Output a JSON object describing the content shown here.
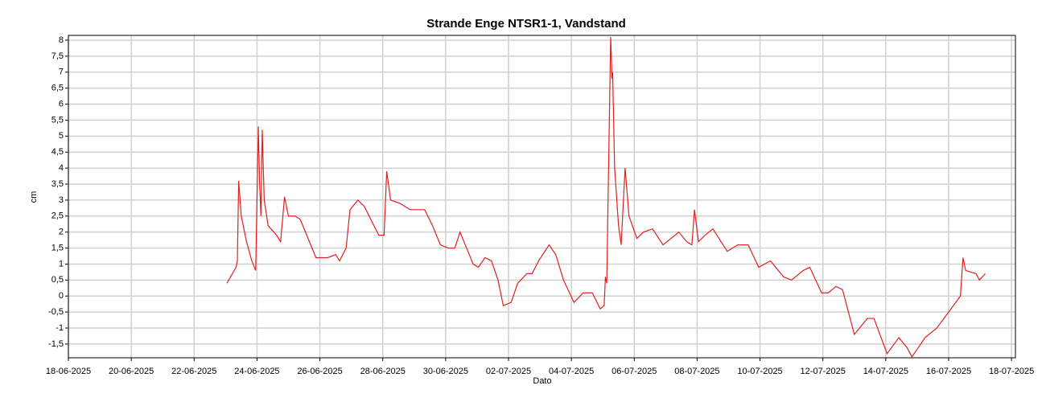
{
  "chart_data": {
    "type": "line",
    "title": "Strande Enge NTSR1-1, Vandstand",
    "x_label": "Dato",
    "y_label": "cm",
    "xlim": [
      "2025-06-18T00:00",
      "2025-07-18T03:00"
    ],
    "ylim": [
      -1.93,
      8.15
    ],
    "xticks": [
      {
        "value": "2025-06-18T00:00",
        "label": "18-06-2025"
      },
      {
        "value": "2025-06-20T00:00",
        "label": "20-06-2025"
      },
      {
        "value": "2025-06-22T00:00",
        "label": "22-06-2025"
      },
      {
        "value": "2025-06-24T00:00",
        "label": "24-06-2025"
      },
      {
        "value": "2025-06-26T00:00",
        "label": "26-06-2025"
      },
      {
        "value": "2025-06-28T00:00",
        "label": "28-06-2025"
      },
      {
        "value": "2025-06-30T00:00",
        "label": "30-06-2025"
      },
      {
        "value": "2025-07-02T00:00",
        "label": "02-07-2025"
      },
      {
        "value": "2025-07-04T00:00",
        "label": "04-07-2025"
      },
      {
        "value": "2025-07-06T00:00",
        "label": "06-07-2025"
      },
      {
        "value": "2025-07-08T00:00",
        "label": "08-07-2025"
      },
      {
        "value": "2025-07-10T00:00",
        "label": "10-07-2025"
      },
      {
        "value": "2025-07-12T00:00",
        "label": "12-07-2025"
      },
      {
        "value": "2025-07-14T00:00",
        "label": "14-07-2025"
      },
      {
        "value": "2025-07-16T00:00",
        "label": "16-07-2025"
      },
      {
        "value": "2025-07-18T00:00",
        "label": "18-07-2025"
      }
    ],
    "yticks": [
      {
        "value": -1.5,
        "label": "-1,5"
      },
      -1,
      {
        "value": -0.5,
        "label": "-0,5"
      },
      0,
      {
        "value": 0.5,
        "label": "0,5"
      },
      1,
      {
        "value": 1.5,
        "label": "1,5"
      },
      2,
      {
        "value": 2.5,
        "label": "2,5"
      },
      3,
      {
        "value": 3.5,
        "label": "3,5"
      },
      4,
      {
        "value": 4.5,
        "label": "4,5"
      },
      5,
      {
        "value": 5.5,
        "label": "5,5"
      },
      6,
      {
        "value": 6.5,
        "label": "6,5"
      },
      7,
      {
        "value": 7.5,
        "label": "7,5"
      },
      8
    ],
    "grid": true,
    "x": [
      "2025-06-23T01:00",
      "2025-06-23T08:00",
      "2025-06-23T09:00",
      "2025-06-23T10:00",
      "2025-06-23T12:00",
      "2025-06-23T16:00",
      "2025-06-23T20:00",
      "2025-06-23T23:00",
      "2025-06-24T01:00",
      "2025-06-24T02:00",
      "2025-06-24T03:00",
      "2025-06-24T04:00",
      "2025-06-24T05:30",
      "2025-06-24T08:30",
      "2025-06-24T15:00",
      "2025-06-24T18:00",
      "2025-06-24T21:00",
      "2025-06-25T00:00",
      "2025-06-25T05:00",
      "2025-06-25T09:00",
      "2025-06-25T15:00",
      "2025-06-25T21:00",
      "2025-06-26T06:00",
      "2025-06-26T12:00",
      "2025-06-26T15:00",
      "2025-06-26T20:00",
      "2025-06-26T23:00",
      "2025-06-27T05:00",
      "2025-06-27T10:00",
      "2025-06-27T16:00",
      "2025-06-27T21:00",
      "2025-06-28T01:00",
      "2025-06-28T03:00",
      "2025-06-28T06:00",
      "2025-06-28T13:00",
      "2025-06-28T21:00",
      "2025-06-29T08:00",
      "2025-06-29T14:00",
      "2025-06-29T20:00",
      "2025-06-30T02:00",
      "2025-06-30T07:00",
      "2025-06-30T11:00",
      "2025-06-30T15:00",
      "2025-06-30T21:00",
      "2025-07-01T01:00",
      "2025-07-01T06:00",
      "2025-07-01T11:00",
      "2025-07-01T16:00",
      "2025-07-01T20:00",
      "2025-07-02T02:00",
      "2025-07-02T07:00",
      "2025-07-02T14:00",
      "2025-07-02T18:00",
      "2025-07-02T23:00",
      "2025-07-03T07:00",
      "2025-07-03T12:00",
      "2025-07-03T18:00",
      "2025-07-04T02:00",
      "2025-07-04T09:00",
      "2025-07-04T16:00",
      "2025-07-04T22:00",
      "2025-07-05T01:00",
      "2025-07-05T02:00",
      "2025-07-05T03:00",
      "2025-07-05T06:00",
      "2025-07-05T07:00",
      "2025-07-05T07:30",
      "2025-07-05T09:00",
      "2025-07-05T12:00",
      "2025-07-05T14:00",
      "2025-07-05T17:00",
      "2025-07-05T20:00",
      "2025-07-06T02:00",
      "2025-07-06T07:00",
      "2025-07-06T14:00",
      "2025-07-06T22:00",
      "2025-07-07T10:00",
      "2025-07-07T16:00",
      "2025-07-07T20:00",
      "2025-07-07T22:00",
      "2025-07-08T01:00",
      "2025-07-08T06:00",
      "2025-07-08T12:00",
      "2025-07-08T23:00",
      "2025-07-09T07:00",
      "2025-07-09T15:00",
      "2025-07-09T23:00",
      "2025-07-10T08:00",
      "2025-07-10T18:00",
      "2025-07-11T00:00",
      "2025-07-11T09:00",
      "2025-07-11T14:00",
      "2025-07-11T23:00",
      "2025-07-12T04:00",
      "2025-07-12T10:00",
      "2025-07-12T15:00",
      "2025-07-13T00:00",
      "2025-07-13T10:00",
      "2025-07-13T15:00",
      "2025-07-14T01:00",
      "2025-07-14T10:00",
      "2025-07-14T16:00",
      "2025-07-14T20:00",
      "2025-07-15T06:00",
      "2025-07-15T15:00",
      "2025-07-16T00:00",
      "2025-07-16T09:00",
      "2025-07-16T11:00",
      "2025-07-16T13:00",
      "2025-07-16T21:00",
      "2025-07-16T23:30",
      "2025-07-17T04:00"
    ],
    "series": [
      {
        "name": "Vandstand",
        "color": "#e02020",
        "values": [
          0.4,
          0.9,
          1.1,
          3.6,
          2.5,
          1.7,
          1.1,
          0.8,
          5.3,
          3.5,
          2.5,
          5.2,
          3.0,
          2.2,
          1.9,
          1.7,
          3.1,
          2.5,
          2.5,
          2.4,
          1.8,
          1.2,
          1.2,
          1.3,
          1.1,
          1.5,
          2.7,
          3.0,
          2.8,
          2.3,
          1.9,
          1.9,
          3.9,
          3.0,
          2.9,
          2.7,
          2.7,
          2.2,
          1.6,
          1.5,
          1.5,
          2.0,
          1.6,
          1.0,
          0.9,
          1.2,
          1.1,
          0.5,
          -0.3,
          -0.2,
          0.4,
          0.7,
          0.7,
          1.1,
          1.6,
          1.3,
          0.5,
          -0.2,
          0.1,
          0.1,
          -0.4,
          -0.3,
          0.6,
          0.4,
          8.1,
          6.8,
          7.0,
          4.0,
          2.2,
          1.6,
          4.0,
          2.5,
          1.8,
          2.0,
          2.1,
          1.6,
          2.0,
          1.7,
          1.6,
          2.7,
          1.7,
          1.9,
          2.1,
          1.4,
          1.6,
          1.6,
          0.9,
          1.1,
          0.6,
          0.5,
          0.8,
          0.9,
          0.1,
          0.1,
          0.3,
          0.2,
          -1.2,
          -0.7,
          -0.7,
          -1.8,
          -1.3,
          -1.6,
          -1.9,
          -1.3,
          -1.0,
          -0.5,
          0.0,
          1.2,
          0.8,
          0.7,
          0.5,
          0.7
        ]
      }
    ]
  }
}
